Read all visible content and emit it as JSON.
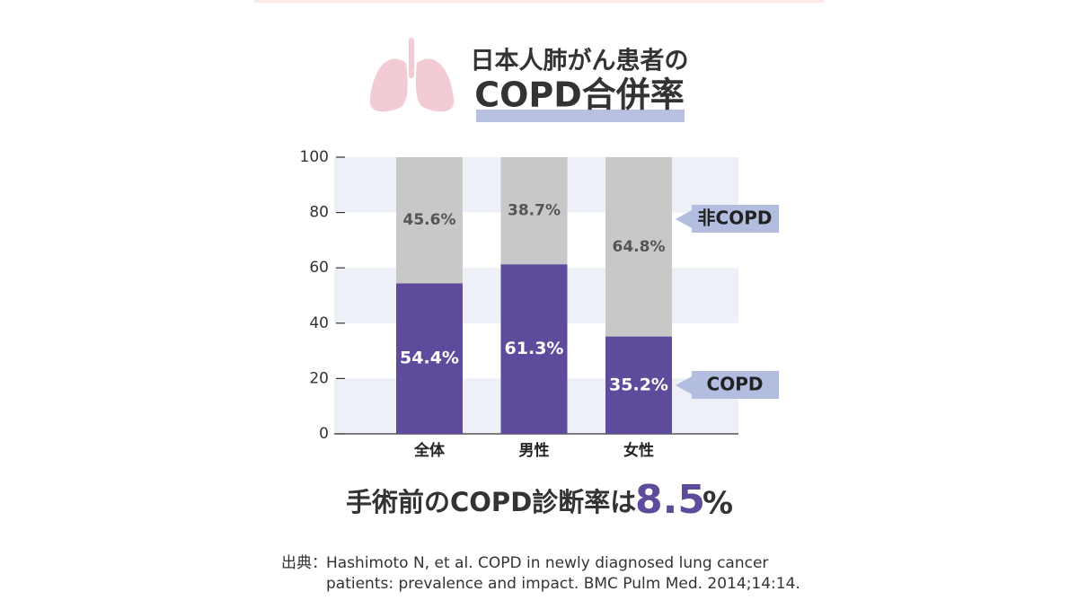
{
  "chart_data": {
    "type": "stacked_bar",
    "title_line1": "日本人肺がん患者の",
    "title_line2": "COPD合併率",
    "categories": [
      "全体",
      "男性",
      "女性"
    ],
    "series": [
      {
        "name": "COPD",
        "color": "#5e4b9c",
        "values": [
          54.4,
          61.3,
          35.2
        ],
        "value_labels": [
          "54.4%",
          "61.3%",
          "35.2%"
        ]
      },
      {
        "name": "非COPD",
        "color": "#c8c8c8",
        "values": [
          45.6,
          38.7,
          64.8
        ],
        "value_labels": [
          "45.6%",
          "38.7%",
          "64.8%"
        ]
      }
    ],
    "ylim": [
      0,
      100
    ],
    "yticks": [
      0,
      20,
      40,
      60,
      80,
      100
    ],
    "grid": true,
    "note": "手術前のCOPD診断率は",
    "note_value": "8.5",
    "note_unit": "%",
    "source_label": "出典：",
    "source_lines": [
      "Hashimoto N, et al. COPD in newly diagnosed lung cancer",
      "patients: prevalence and impact. BMC Pulm Med. 2014;14:14."
    ]
  }
}
